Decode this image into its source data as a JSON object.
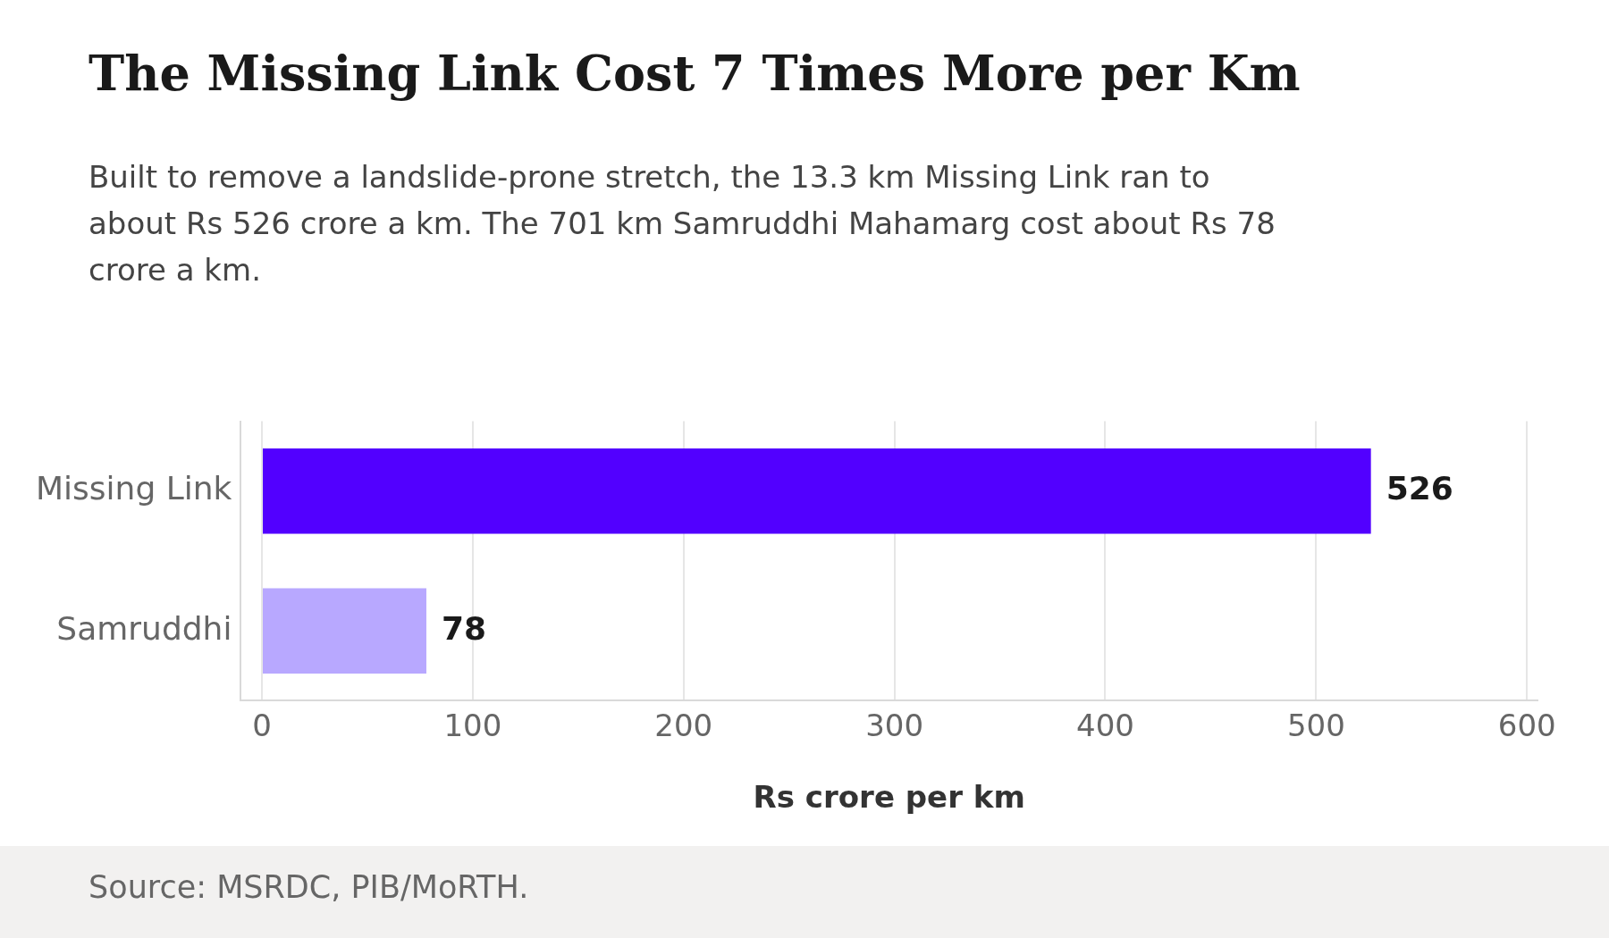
{
  "chart_data": {
    "type": "bar",
    "orientation": "horizontal",
    "title": "The Missing Link Cost 7 Times More per Km",
    "subtitle": "Built to remove a landslide-prone stretch, the 13.3 km Missing Link ran to about Rs 526 crore a km. The 701 km Samruddhi Mahamarg cost about Rs 78 crore a km.",
    "xlabel": "Rs crore per km",
    "categories": [
      "Missing Link",
      "Samruddhi"
    ],
    "values": [
      526,
      78
    ],
    "colors": [
      "#5200ff",
      "#b8a8ff"
    ],
    "xlim": [
      -10,
      605
    ],
    "xticks": [
      0,
      100,
      200,
      300,
      400,
      500,
      600
    ],
    "grid": "x",
    "legend": false,
    "data_labels": true,
    "annotations": [
      "Source: MSRDC, PIB/MoRTH."
    ]
  }
}
